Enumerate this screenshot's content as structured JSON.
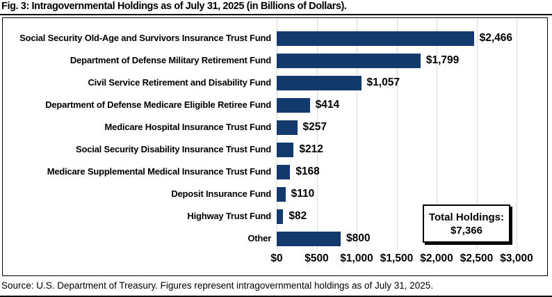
{
  "figure": {
    "title": "Fig. 3: Intragovernmental Holdings as of July 31, 2025 (in Billions of Dollars).",
    "source_note": "Source: U.S. Department of Treasury. Figures represent intragovernmental holdings as of July 31, 2025."
  },
  "chart_data": {
    "type": "bar",
    "orientation": "horizontal",
    "title": "Fig. 3: Intragovernmental Holdings as of July 31, 2025 (in Billions of Dollars).",
    "categories": [
      "Social Security Old-Age and Survivors Insurance Trust Fund",
      "Department of Defense Military Retirement Fund",
      "Civil Service Retirement and Disability Fund",
      "Department of Defense Medicare Eligible Retiree Fund",
      "Medicare Hospital Insurance Trust Fund",
      "Social Security Disability Insurance Trust Fund",
      "Medicare Supplemental Medical Insurance Trust Fund",
      "Deposit Insurance Fund",
      "Highway Trust Fund",
      "Other"
    ],
    "values": [
      2466,
      1799,
      1057,
      414,
      257,
      212,
      168,
      110,
      82,
      800
    ],
    "value_labels": [
      "$2,466",
      "$1,799",
      "$1,057",
      "$414",
      "$257",
      "$212",
      "$168",
      "$110",
      "$82",
      "$800"
    ],
    "x_ticks": [
      0,
      500,
      1000,
      1500,
      2000,
      2500,
      3000
    ],
    "x_tick_labels": [
      "$0",
      "$500",
      "$1,000",
      "$1,500",
      "$2,000",
      "$2,500",
      "$3,000"
    ],
    "xlim": [
      0,
      3000
    ],
    "grid": true,
    "legend": false,
    "annotation": {
      "label": "Total Holdings:",
      "value": "$7,366",
      "total": 7366
    },
    "colors": {
      "bar": "#123A6C",
      "gridline": "#D9D9D9",
      "text": "#000000",
      "background": "#FFFFFF"
    }
  }
}
